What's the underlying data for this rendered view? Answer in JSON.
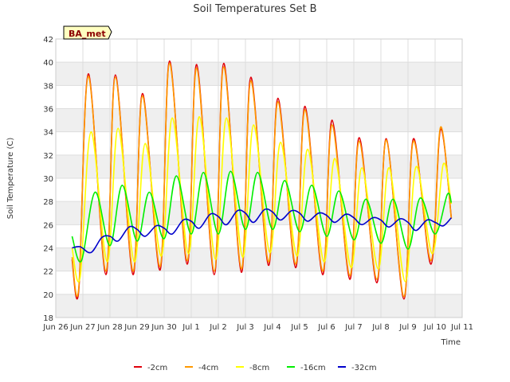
{
  "chart_data": {
    "type": "line",
    "title": "Soil Temperatures Set B",
    "xlabel": "Time",
    "ylabel": "Soil Temperature (C)",
    "badge": "BA_met",
    "ylim": [
      18,
      42
    ],
    "yticks": [
      18,
      20,
      22,
      24,
      26,
      28,
      30,
      32,
      34,
      36,
      38,
      40,
      42
    ],
    "xlim": [
      0,
      15
    ],
    "xticks": [
      {
        "x": 0,
        "label": "Jun 26"
      },
      {
        "x": 1,
        "label": "Jun 27"
      },
      {
        "x": 2,
        "label": "Jun 28"
      },
      {
        "x": 3,
        "label": "Jun 29"
      },
      {
        "x": 4,
        "label": "Jun 30"
      },
      {
        "x": 5,
        "label": "Jul 1"
      },
      {
        "x": 6,
        "label": "Jul 2"
      },
      {
        "x": 7,
        "label": "Jul 3"
      },
      {
        "x": 8,
        "label": "Jul 4"
      },
      {
        "x": 9,
        "label": "Jul 5"
      },
      {
        "x": 10,
        "label": "Jul 6"
      },
      {
        "x": 11,
        "label": "Jul 7"
      },
      {
        "x": 12,
        "label": "Jul 8"
      },
      {
        "x": 13,
        "label": "Jul 9"
      },
      {
        "x": 14,
        "label": "Jul 10"
      },
      {
        "x": 15,
        "label": "Jul 11"
      }
    ],
    "grid": true,
    "legend_position": "bottom",
    "series": [
      {
        "name": "-2cm",
        "color": "#e0000b",
        "points": [
          [
            0.6,
            23.0
          ],
          [
            0.85,
            20.4
          ],
          [
            1.2,
            39.0
          ],
          [
            1.85,
            21.7
          ],
          [
            2.2,
            38.9
          ],
          [
            2.85,
            21.7
          ],
          [
            3.2,
            37.3
          ],
          [
            3.85,
            22.1
          ],
          [
            4.2,
            40.1
          ],
          [
            4.85,
            22.6
          ],
          [
            5.2,
            39.8
          ],
          [
            5.85,
            21.7
          ],
          [
            6.2,
            39.9
          ],
          [
            6.85,
            21.9
          ],
          [
            7.2,
            38.7
          ],
          [
            7.85,
            22.5
          ],
          [
            8.2,
            36.9
          ],
          [
            8.85,
            22.3
          ],
          [
            9.2,
            36.2
          ],
          [
            9.85,
            21.7
          ],
          [
            10.2,
            35.0
          ],
          [
            10.85,
            21.3
          ],
          [
            11.2,
            33.5
          ],
          [
            11.85,
            21.0
          ],
          [
            12.2,
            33.4
          ],
          [
            12.85,
            19.6
          ],
          [
            13.2,
            33.4
          ],
          [
            13.85,
            22.6
          ],
          [
            14.2,
            34.2
          ],
          [
            14.6,
            26.6
          ]
        ]
      },
      {
        "name": "-4cm",
        "color": "#ff9900",
        "points": [
          [
            0.6,
            23.2
          ],
          [
            0.85,
            20.6
          ],
          [
            1.2,
            38.8
          ],
          [
            1.85,
            22.0
          ],
          [
            2.2,
            38.7
          ],
          [
            2.85,
            22.0
          ],
          [
            3.2,
            37.1
          ],
          [
            3.85,
            22.4
          ],
          [
            4.2,
            39.9
          ],
          [
            4.85,
            22.9
          ],
          [
            5.2,
            39.5
          ],
          [
            5.85,
            22.0
          ],
          [
            6.2,
            39.6
          ],
          [
            6.85,
            22.2
          ],
          [
            7.2,
            38.4
          ],
          [
            7.85,
            22.8
          ],
          [
            8.2,
            36.6
          ],
          [
            8.85,
            22.6
          ],
          [
            9.2,
            35.9
          ],
          [
            9.85,
            22.0
          ],
          [
            10.2,
            34.6
          ],
          [
            10.85,
            21.6
          ],
          [
            11.2,
            33.2
          ],
          [
            11.85,
            21.3
          ],
          [
            12.2,
            33.3
          ],
          [
            12.85,
            19.8
          ],
          [
            13.2,
            33.2
          ],
          [
            13.85,
            22.9
          ],
          [
            14.2,
            34.4
          ],
          [
            14.6,
            26.5
          ]
        ]
      },
      {
        "name": "-8cm",
        "color": "#ffff00",
        "points": [
          [
            0.6,
            24.0
          ],
          [
            0.9,
            21.5
          ],
          [
            1.3,
            34.0
          ],
          [
            1.9,
            22.8
          ],
          [
            2.3,
            34.3
          ],
          [
            2.9,
            22.8
          ],
          [
            3.3,
            33.0
          ],
          [
            3.9,
            23.3
          ],
          [
            4.3,
            35.2
          ],
          [
            4.9,
            23.5
          ],
          [
            5.3,
            35.3
          ],
          [
            5.9,
            23.0
          ],
          [
            6.3,
            35.2
          ],
          [
            6.9,
            23.2
          ],
          [
            7.3,
            34.6
          ],
          [
            7.9,
            23.6
          ],
          [
            8.3,
            33.1
          ],
          [
            8.9,
            23.3
          ],
          [
            9.3,
            32.5
          ],
          [
            9.9,
            22.8
          ],
          [
            10.3,
            31.7
          ],
          [
            10.9,
            22.3
          ],
          [
            11.3,
            30.9
          ],
          [
            11.9,
            22.2
          ],
          [
            12.3,
            30.9
          ],
          [
            12.9,
            21.1
          ],
          [
            13.3,
            31.0
          ],
          [
            13.9,
            23.5
          ],
          [
            14.3,
            31.2
          ],
          [
            14.6,
            27.8
          ]
        ]
      },
      {
        "name": "-16cm",
        "color": "#00ee00",
        "points": [
          [
            0.6,
            25.0
          ],
          [
            0.95,
            22.9
          ],
          [
            1.45,
            28.8
          ],
          [
            2.0,
            24.2
          ],
          [
            2.45,
            29.4
          ],
          [
            3.0,
            24.6
          ],
          [
            3.45,
            28.8
          ],
          [
            4.0,
            24.8
          ],
          [
            4.45,
            30.2
          ],
          [
            5.0,
            25.2
          ],
          [
            5.45,
            30.5
          ],
          [
            6.0,
            25.2
          ],
          [
            6.45,
            30.6
          ],
          [
            7.0,
            25.6
          ],
          [
            7.45,
            30.5
          ],
          [
            8.0,
            25.6
          ],
          [
            8.45,
            29.8
          ],
          [
            9.0,
            25.4
          ],
          [
            9.45,
            29.4
          ],
          [
            10.0,
            25.0
          ],
          [
            10.45,
            28.9
          ],
          [
            11.0,
            24.7
          ],
          [
            11.45,
            28.2
          ],
          [
            12.0,
            24.4
          ],
          [
            12.45,
            28.2
          ],
          [
            13.0,
            23.9
          ],
          [
            13.45,
            28.3
          ],
          [
            14.0,
            25.2
          ],
          [
            14.45,
            28.6
          ],
          [
            14.6,
            27.9
          ]
        ]
      },
      {
        "name": "-32cm",
        "color": "#0000cc",
        "points": [
          [
            0.6,
            24.0
          ],
          [
            0.9,
            24.1
          ],
          [
            1.3,
            23.6
          ],
          [
            1.7,
            24.9
          ],
          [
            2.0,
            25.0
          ],
          [
            2.3,
            24.6
          ],
          [
            2.7,
            25.8
          ],
          [
            3.0,
            25.6
          ],
          [
            3.3,
            25.0
          ],
          [
            3.7,
            25.9
          ],
          [
            4.0,
            25.7
          ],
          [
            4.3,
            25.2
          ],
          [
            4.7,
            26.4
          ],
          [
            5.0,
            26.3
          ],
          [
            5.3,
            25.7
          ],
          [
            5.7,
            26.9
          ],
          [
            6.0,
            26.7
          ],
          [
            6.3,
            26.0
          ],
          [
            6.7,
            27.2
          ],
          [
            7.0,
            27.0
          ],
          [
            7.3,
            26.2
          ],
          [
            7.7,
            27.3
          ],
          [
            8.0,
            27.1
          ],
          [
            8.3,
            26.4
          ],
          [
            8.7,
            27.2
          ],
          [
            9.0,
            27.0
          ],
          [
            9.3,
            26.3
          ],
          [
            9.7,
            27.0
          ],
          [
            10.0,
            26.8
          ],
          [
            10.3,
            26.2
          ],
          [
            10.7,
            26.9
          ],
          [
            11.0,
            26.6
          ],
          [
            11.3,
            26.0
          ],
          [
            11.7,
            26.6
          ],
          [
            12.0,
            26.4
          ],
          [
            12.3,
            25.8
          ],
          [
            12.7,
            26.5
          ],
          [
            13.0,
            26.2
          ],
          [
            13.3,
            25.5
          ],
          [
            13.7,
            26.4
          ],
          [
            14.0,
            26.2
          ],
          [
            14.3,
            25.9
          ],
          [
            14.6,
            26.6
          ]
        ]
      }
    ]
  }
}
